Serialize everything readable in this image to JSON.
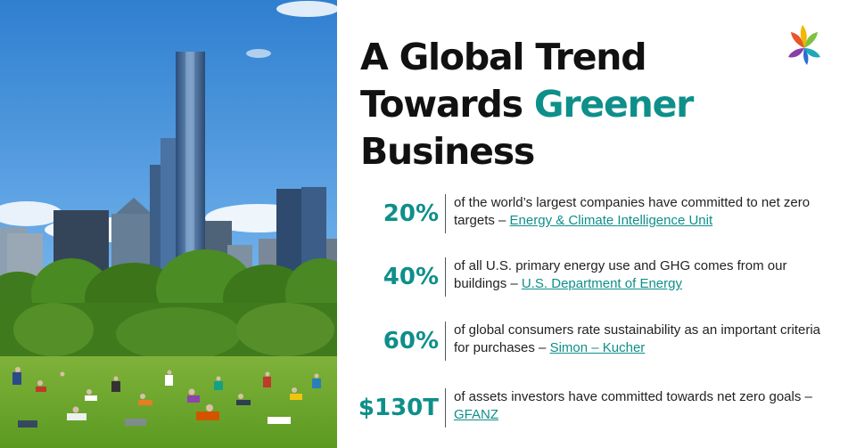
{
  "headline": {
    "line1": "A Global Trend",
    "line2_plain": "Towards ",
    "line2_accent": "Greener",
    "line3": "Business"
  },
  "colors": {
    "accent": "#0e8f8a",
    "text": "#111111"
  },
  "stats": [
    {
      "value": "20%",
      "text": "of the world’s largest companies have committed to net zero targets – ",
      "source": "Energy & Climate Intelligence Unit"
    },
    {
      "value": "40%",
      "text": "of all U.S. primary energy use and GHG comes from our buildings – ",
      "source": "U.S. Department of Energy"
    },
    {
      "value": "60%",
      "text": "of global consumers rate sustainability as an important criteria for purchases – ",
      "source": "Simon – Kucher"
    },
    {
      "value": "$130T",
      "text": "of assets investors have committed towards net zero goals – ",
      "source": "GFANZ"
    }
  ]
}
